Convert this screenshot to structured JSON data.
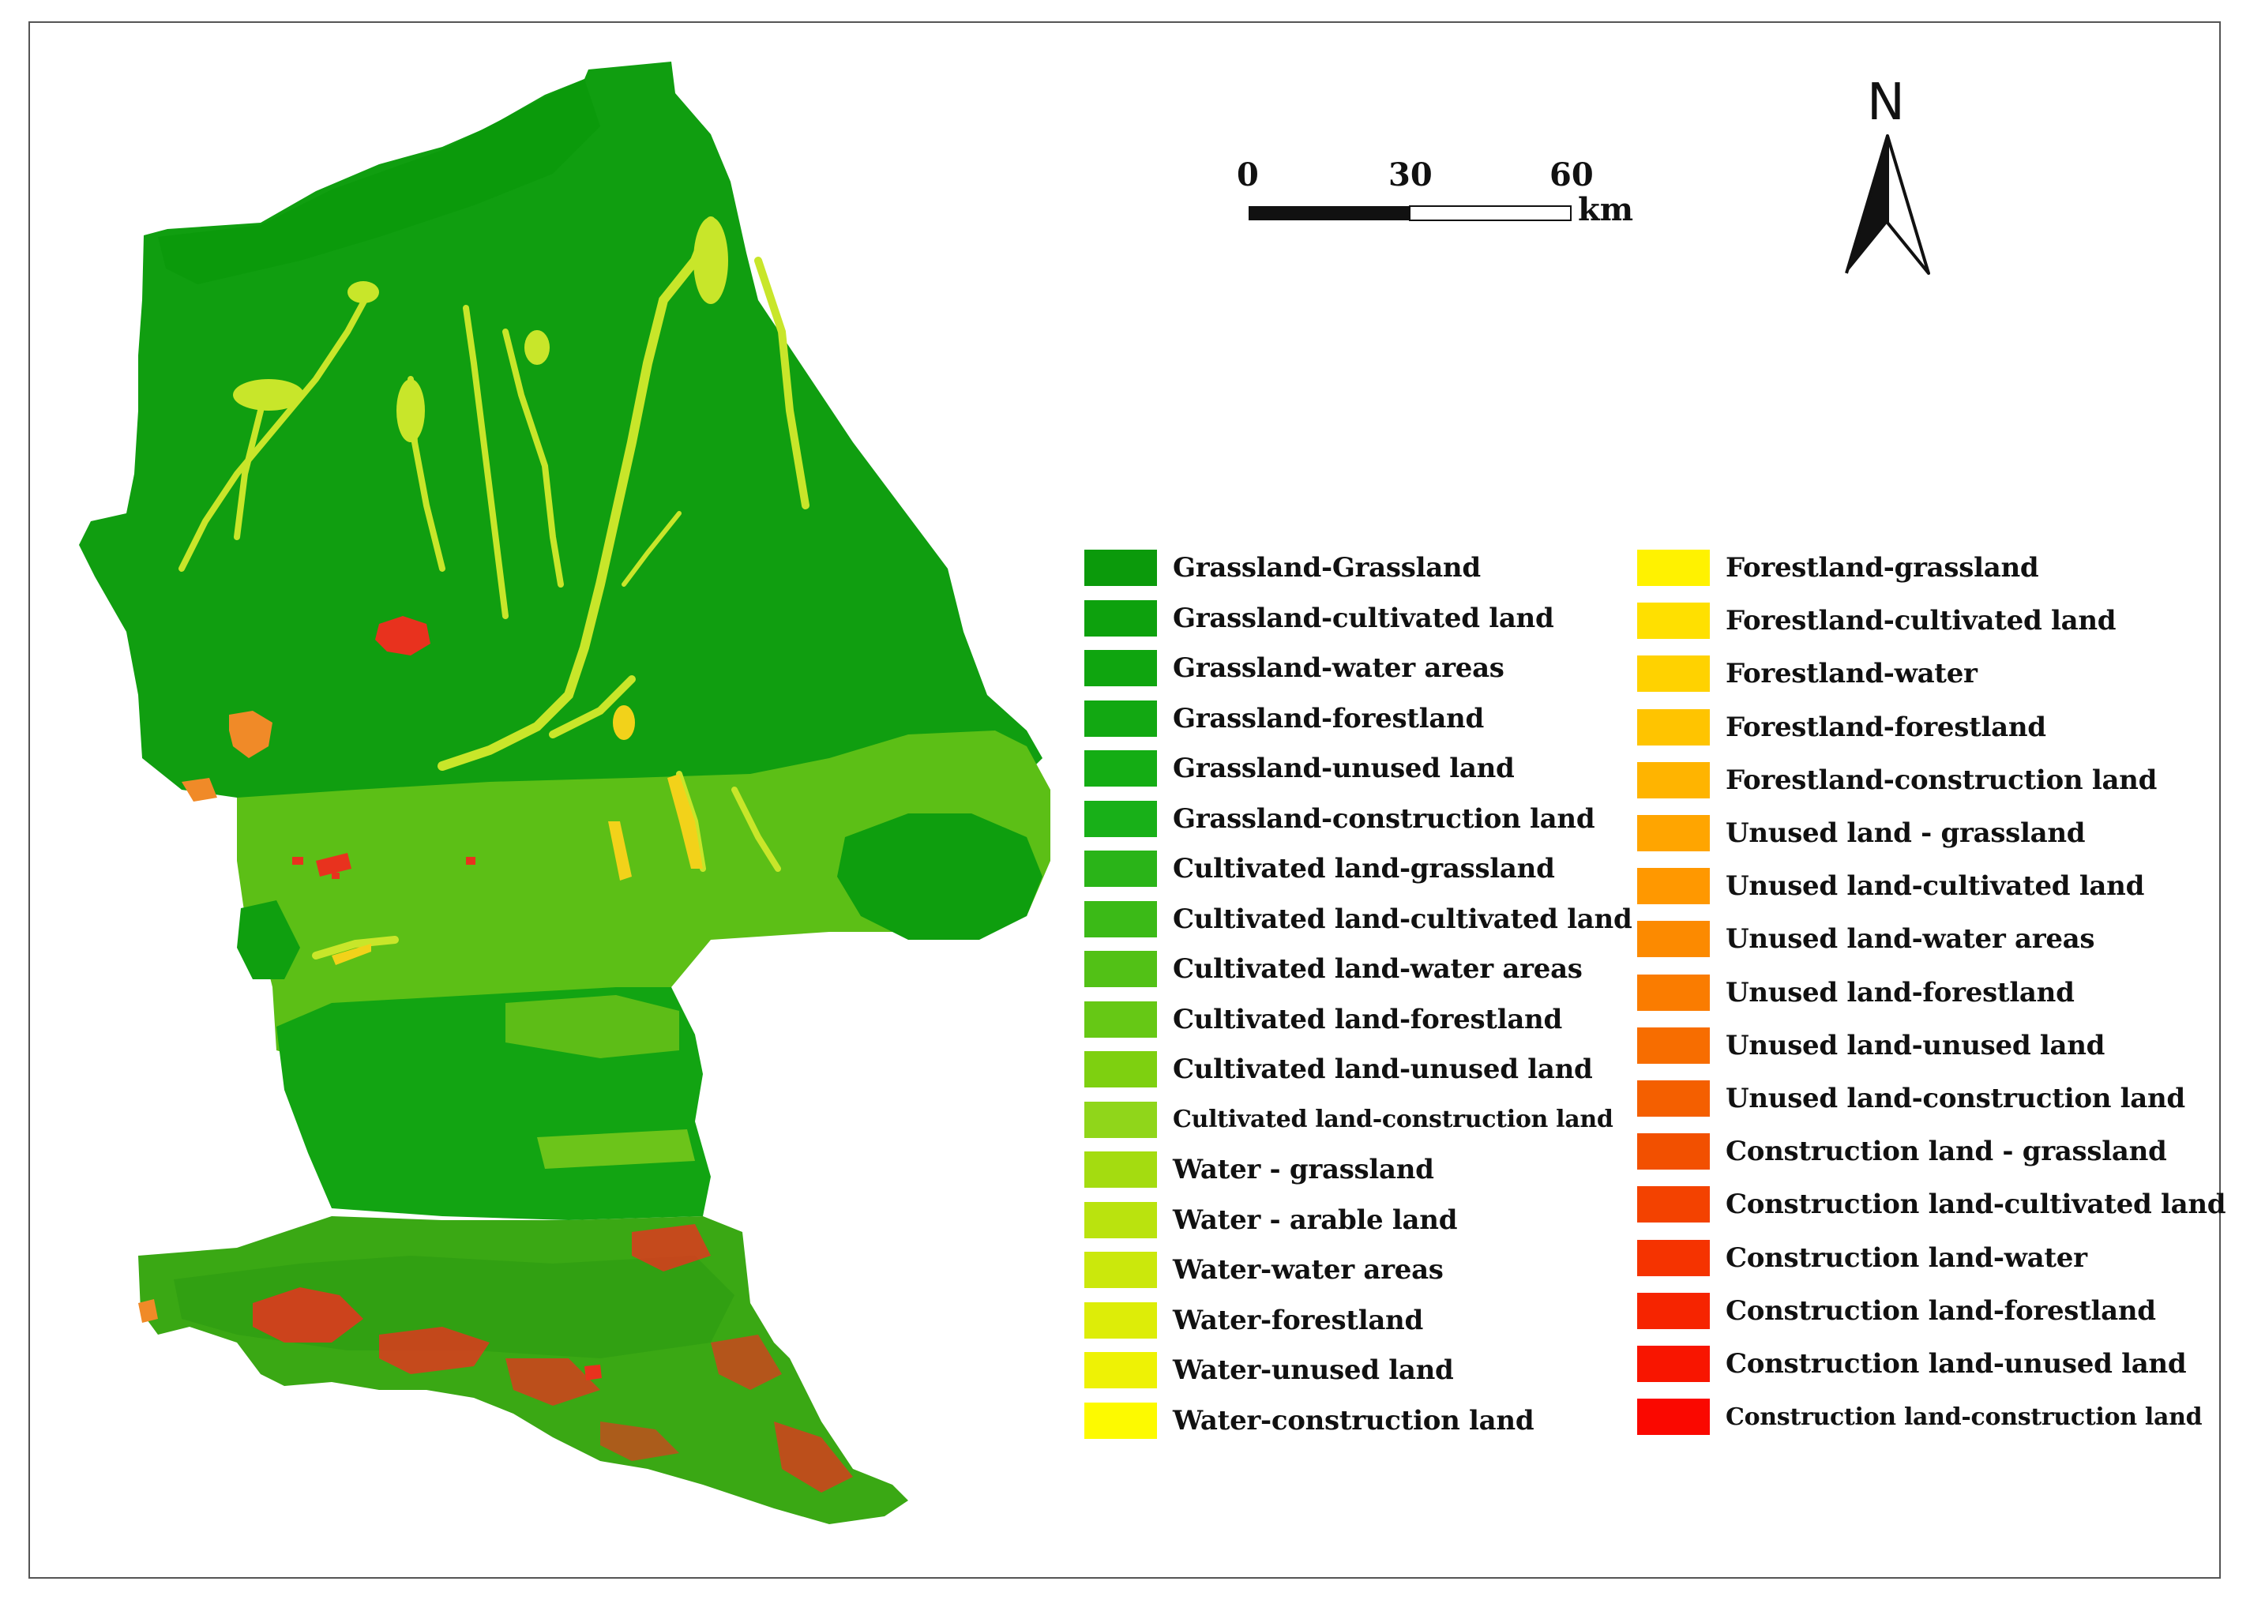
{
  "scale_bar": {
    "ticks": [
      "0",
      "30",
      "60"
    ],
    "unit": "km"
  },
  "north_arrow": {
    "label": "N",
    "icon": "north-arrow-icon"
  },
  "map_colors": {
    "grassland": "#11a811",
    "grassland_dark": "#0e9a0e",
    "cultivated": "#5cc11a",
    "cultivated_light": "#7fd21e",
    "water": "#c8e62a",
    "forest": "#f2d21a",
    "unused": "#f08a28",
    "construction": "#e8321e"
  },
  "legend": {
    "left": [
      {
        "label": "Grassland-Grassland",
        "color": "#0b9a0b"
      },
      {
        "label": "Grassland-cultivated land",
        "color": "#0da10d"
      },
      {
        "label": "Grassland-water areas",
        "color": "#0fa50f"
      },
      {
        "label": "Grassland-forestland",
        "color": "#12a812"
      },
      {
        "label": "Grassland-unused land",
        "color": "#14ad14"
      },
      {
        "label": "Grassland-construction land",
        "color": "#18b018"
      },
      {
        "label": "Cultivated land-grassland",
        "color": "#2ab418"
      },
      {
        "label": "Cultivated land-cultivated land",
        "color": "#3bba17"
      },
      {
        "label": "Cultivated land-water areas",
        "color": "#52c116"
      },
      {
        "label": "Cultivated land-forestland",
        "color": "#66c815"
      },
      {
        "label": "Cultivated land-unused land",
        "color": "#7ed010"
      },
      {
        "label": "Cultivated land-construction land",
        "color": "#90d61a",
        "small": true
      },
      {
        "label": "Water - grassland",
        "color": "#a4dc10"
      },
      {
        "label": "Water - arable land",
        "color": "#bae30e"
      },
      {
        "label": "Water-water areas",
        "color": "#cbe80c"
      },
      {
        "label": "Water-forestland",
        "color": "#dded08"
      },
      {
        "label": "Water-unused land",
        "color": "#eef205"
      },
      {
        "label": "Water-construction land",
        "color": "#fdfa00"
      }
    ],
    "right": [
      {
        "label": "Forestland-grassland",
        "color": "#fff200"
      },
      {
        "label": "Forestland-cultivated land",
        "color": "#ffe000"
      },
      {
        "label": "Forestland-water",
        "color": "#ffd200"
      },
      {
        "label": "Forestland-forestland",
        "color": "#ffc400"
      },
      {
        "label": "Forestland-construction land",
        "color": "#ffb400"
      },
      {
        "label": "Unused land - grassland",
        "color": "#ffa500"
      },
      {
        "label": "Unused land-cultivated land",
        "color": "#ff9800"
      },
      {
        "label": "Unused land-water areas",
        "color": "#fc8a00"
      },
      {
        "label": "Unused land-forestland",
        "color": "#fa7c00"
      },
      {
        "label": "Unused land-unused land",
        "color": "#f76d00"
      },
      {
        "label": "Unused land-construction land",
        "color": "#f45f00"
      },
      {
        "label": "Construction land - grassland",
        "color": "#f25000"
      },
      {
        "label": "Construction land-cultivated land",
        "color": "#f34200"
      },
      {
        "label": "Construction land-water",
        "color": "#f53300"
      },
      {
        "label": "Construction land-forestland",
        "color": "#f62400"
      },
      {
        "label": "Construction land-unused land",
        "color": "#f81500"
      },
      {
        "label": "Construction land-construction land",
        "color": "#fa0800",
        "small": true
      }
    ]
  }
}
